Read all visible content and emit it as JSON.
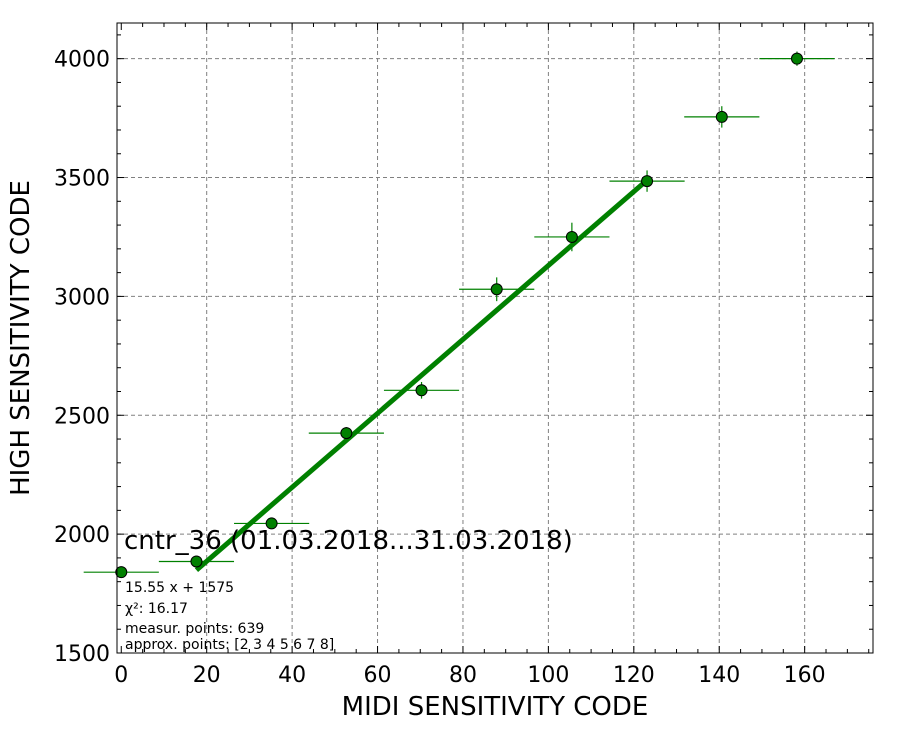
{
  "chart_data": {
    "type": "scatter",
    "title": "cntr_36 (01.03.2018...31.03.2018)",
    "xlabel": "MIDI SENSITIVITY CODE",
    "ylabel": "HIGH SENSITIVITY CODE",
    "xlim": [
      -1,
      176
    ],
    "ylim": [
      1500,
      4150
    ],
    "xticks": [
      0,
      20,
      40,
      60,
      80,
      100,
      120,
      140,
      160
    ],
    "yticks": [
      1500,
      2000,
      2500,
      3000,
      3500,
      4000
    ],
    "grid": true,
    "points": [
      {
        "x": 0,
        "y": 1840,
        "xerr": 8.8,
        "yerr": 15
      },
      {
        "x": 17.6,
        "y": 1885,
        "xerr": 8.8,
        "yerr": 20
      },
      {
        "x": 35.2,
        "y": 2045,
        "xerr": 8.8,
        "yerr": 20
      },
      {
        "x": 52.7,
        "y": 2425,
        "xerr": 8.8,
        "yerr": 25
      },
      {
        "x": 70.3,
        "y": 2605,
        "xerr": 8.8,
        "yerr": 35
      },
      {
        "x": 87.9,
        "y": 3030,
        "xerr": 8.8,
        "yerr": 50
      },
      {
        "x": 105.5,
        "y": 3250,
        "xerr": 8.8,
        "yerr": 60
      },
      {
        "x": 123.1,
        "y": 3485,
        "xerr": 8.8,
        "yerr": 45
      },
      {
        "x": 140.6,
        "y": 3755,
        "xerr": 8.8,
        "yerr": 45
      },
      {
        "x": 158.2,
        "y": 4000,
        "xerr": 8.8,
        "yerr": 30
      }
    ],
    "fit": {
      "x": [
        17.6,
        123.1
      ],
      "y": [
        1848.7,
        3489.2
      ],
      "equation": "15.55 x + 1575",
      "chi2": "χ²: 16.17",
      "measur_points": "measur. points: 639",
      "approx_points": "approx. points: [2 3 4 5 6 7 8]"
    },
    "colors": {
      "marker_fill": "#008000",
      "marker_edge": "#000000",
      "errorbar": "#008000",
      "fit_line": "#008000",
      "grid": "#808080"
    }
  }
}
